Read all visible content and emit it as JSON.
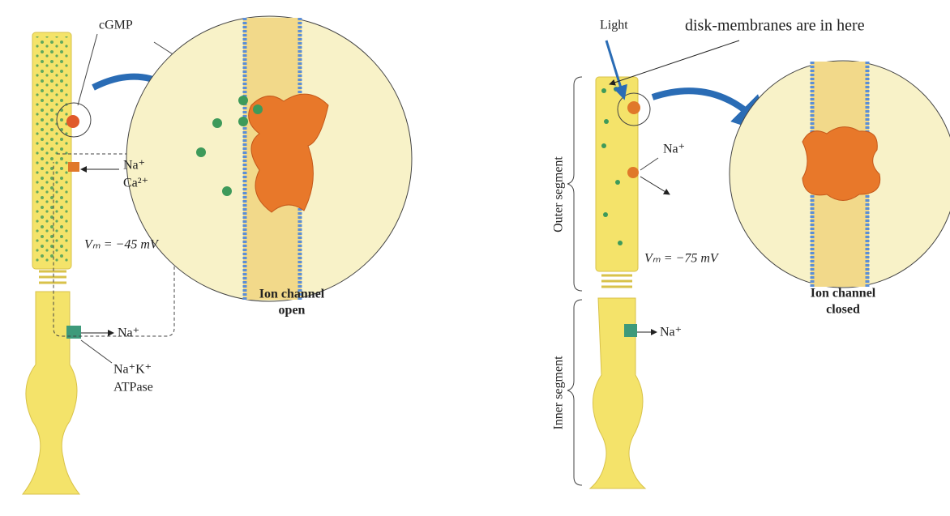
{
  "left_panel": {
    "cgmp": "cGMP",
    "na_in": "Na⁺",
    "ca_in": "Ca²⁺",
    "membrane_potential": "Vₘ = −45 mV",
    "na_out": "Na⁺",
    "pump": [
      "Na⁺K⁺",
      "ATPase"
    ],
    "caption": [
      "Ion channel",
      "open"
    ]
  },
  "right_panel": {
    "light": "Light",
    "annotation": "disk-membranes are in here",
    "outer_segment": "Outer segment",
    "inner_segment": "Inner segment",
    "na_in": "Na⁺",
    "membrane_potential": "Vₘ = −75 mV",
    "na_out": "Na⁺",
    "caption": [
      "Ion channel",
      "closed"
    ]
  }
}
